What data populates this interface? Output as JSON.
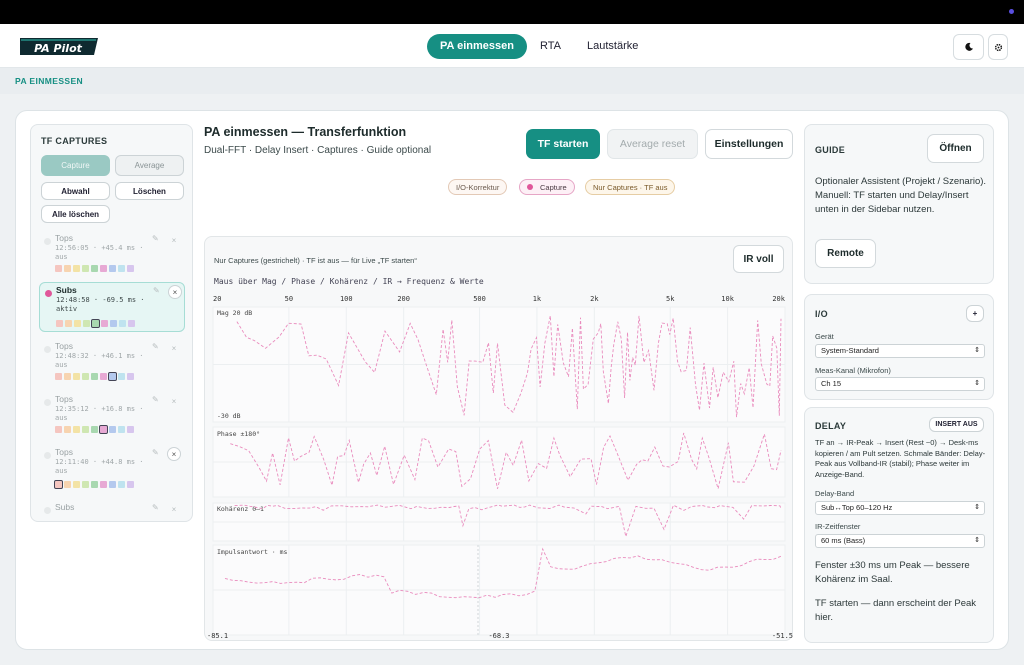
{
  "app": {
    "logo_text": "PA Pilot",
    "nav": [
      "PA einmessen",
      "RTA",
      "Lautstärke"
    ],
    "theme_icon": "moon-icon",
    "settings_icon": "gear-icon",
    "breadcrumb": "PA EINMESSEN"
  },
  "captures": {
    "title": "TF CAPTURES",
    "seg": [
      "Capture",
      "Average"
    ],
    "btn_abwahl": "Abwahl",
    "btn_loeschen": "Löschen",
    "btn_alle": "Alle löschen",
    "items": [
      {
        "name": "Tops",
        "meta": "12:56:05 · +45.4 ms · aus",
        "active": false
      },
      {
        "name": "Subs",
        "meta": "12:48:58 · -69.5 ms · aktiv",
        "active": true
      },
      {
        "name": "Tops",
        "meta": "12:48:32 · +46.1 ms · aus",
        "active": false
      },
      {
        "name": "Tops",
        "meta": "12:35:12 · +16.8 ms · aus",
        "active": false
      },
      {
        "name": "Tops",
        "meta": "12:11:40 · +44.8 ms · aus",
        "active": false
      },
      {
        "name": "Subs",
        "meta": "",
        "active": false
      }
    ],
    "swatch_colors": [
      "#f5c6c0",
      "#f7d4b0",
      "#f3e3a6",
      "#cfe7b2",
      "#a8d8b0",
      "#e7a9d4",
      "#b4c9ee",
      "#bfe3ef",
      "#d7c6ee"
    ]
  },
  "center": {
    "title": "PA einmessen — Transferfunktion",
    "subtitle": "Dual-FFT · Delay Insert · Captures · Guide optional",
    "btn_start": "TF starten",
    "btn_avg": "Average reset",
    "btn_settings": "Einstellungen",
    "chips": {
      "io": "I/O-Korrektur",
      "capture": "Capture",
      "only": "Nur Captures · TF aus"
    },
    "plot_note": "Nur Captures (gestrichelt) · TF ist aus — für Live „TF starten“",
    "plot_hint": "Maus über Mag / Phase / Kohärenz / IR → Frequenz & Werte",
    "ir_btn": "IR voll",
    "freq_ticks": [
      "20",
      "50",
      "100",
      "200",
      "500",
      "1k",
      "2k",
      "5k",
      "10k",
      "20k"
    ],
    "mag_top": "Mag 20 dB",
    "mag_bottom": "-30 dB",
    "phase_label": "Phase ±180°",
    "coh_label": "Kohärenz 0–1",
    "ir_label": "Impulsantwort · ms",
    "ir_ticks": [
      "-85.1",
      "-68.3",
      "-51.5"
    ]
  },
  "guide": {
    "title": "GUIDE",
    "btn_open": "Öffnen",
    "text": "Optionaler Assistent (Projekt / Szenario). Manuell: TF starten und Delay/Insert unten in der Sidebar nutzen.",
    "btn_remote": "Remote"
  },
  "io": {
    "title": "I/O",
    "add": "+",
    "device_label": "Gerät",
    "device_value": "System-Standard",
    "meas_label": "Meas-Kanal (Mikrofon)",
    "meas_value": "Ch 15"
  },
  "delay": {
    "title": "DELAY",
    "insert_btn": "INSERT AUS",
    "desc": "TF an → IR-Peak → Insert (Rest ~0) → Desk-ms kopieren / am Pult setzen. Schmale Bänder: Delay-Peak aus Vollband-IR (stabil); Phase weiter im Anzeige-Band.",
    "band_label": "Delay-Band",
    "band_value": "Sub↔Top 60–120 Hz",
    "window_label": "IR-Zeitfenster",
    "window_value": "60 ms (Bass)",
    "hint1": "Fenster ±30 ms um Peak — bessere Kohärenz im Saal.",
    "hint2": "TF starten — dann erscheint der Peak hier."
  },
  "colors": {
    "accent": "#168f83",
    "capture": "#e0579a",
    "trace": "#e98bbd"
  }
}
